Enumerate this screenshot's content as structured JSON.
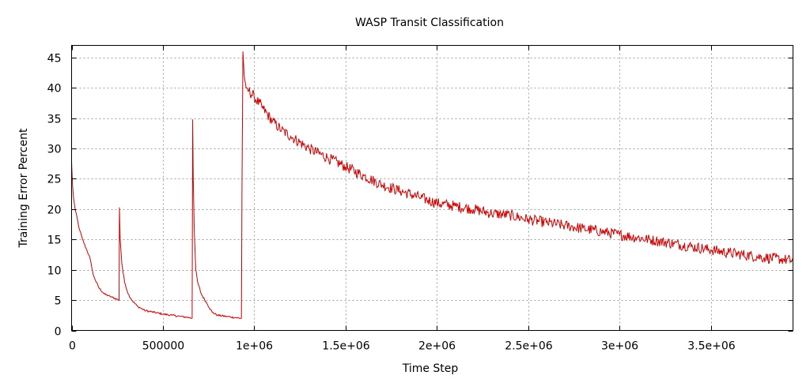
{
  "chart_data": {
    "type": "line",
    "title": "WASP Transit Classification",
    "xlabel": "Time Step",
    "ylabel": "Training Error Percent",
    "xlim": [
      0,
      3950000
    ],
    "ylim": [
      0,
      47
    ],
    "grid": true,
    "xticks": [
      {
        "value": 0,
        "label": "0"
      },
      {
        "value": 500000,
        "label": "500000"
      },
      {
        "value": 1000000,
        "label": "1e+06"
      },
      {
        "value": 1500000,
        "label": "1.5e+06"
      },
      {
        "value": 2000000,
        "label": "2e+06"
      },
      {
        "value": 2500000,
        "label": "2.5e+06"
      },
      {
        "value": 3000000,
        "label": "3e+06"
      },
      {
        "value": 3500000,
        "label": "3.5e+06"
      }
    ],
    "yticks": [
      {
        "value": 0,
        "label": "0"
      },
      {
        "value": 5,
        "label": "5"
      },
      {
        "value": 10,
        "label": "10"
      },
      {
        "value": 15,
        "label": "15"
      },
      {
        "value": 20,
        "label": "20"
      },
      {
        "value": 25,
        "label": "25"
      },
      {
        "value": 30,
        "label": "30"
      },
      {
        "value": 35,
        "label": "35"
      },
      {
        "value": 40,
        "label": "40"
      },
      {
        "value": 45,
        "label": "45"
      }
    ],
    "series": [
      {
        "color": "#cc0000",
        "x": [
          0,
          5000,
          10000,
          20000,
          40000,
          60000,
          80000,
          100000,
          120000,
          150000,
          180000,
          220000,
          260000,
          262000,
          266000,
          275000,
          290000,
          310000,
          330000,
          360000,
          400000,
          450000,
          500000,
          550000,
          600000,
          650000,
          660000,
          663000,
          666000,
          672000,
          680000,
          690000,
          710000,
          740000,
          770000,
          800000,
          850000,
          900000,
          930000,
          933000,
          938000,
          945000,
          955000,
          970000,
          1000000,
          1050000,
          1100000,
          1150000,
          1200000,
          1300000,
          1400000,
          1500000,
          1600000,
          1700000,
          1800000,
          1900000,
          2000000,
          2100000,
          2200000,
          2300000,
          2400000,
          2500000,
          2600000,
          2700000,
          2800000,
          2900000,
          3000000,
          3100000,
          3200000,
          3300000,
          3400000,
          3500000,
          3600000,
          3700000,
          3800000,
          3900000,
          3950000
        ],
        "y": [
          27.8,
          24,
          22,
          20,
          17,
          15,
          13.5,
          12,
          9,
          7,
          6,
          5.5,
          5,
          20.3,
          15,
          11,
          8,
          6,
          5,
          4,
          3.3,
          3,
          2.7,
          2.5,
          2.3,
          2.1,
          2.0,
          34.8,
          25,
          16,
          10,
          8,
          6,
          4.5,
          3,
          2.5,
          2.3,
          2.1,
          2.0,
          23,
          46,
          42,
          40,
          39.5,
          38.5,
          36.5,
          34.5,
          33,
          32,
          30,
          28.5,
          27,
          25.5,
          24,
          23,
          22,
          21,
          20.5,
          20,
          19.3,
          19,
          18.3,
          17.8,
          17.3,
          16.8,
          16.3,
          15.8,
          15.3,
          14.8,
          14.3,
          13.8,
          13.3,
          12.8,
          12.4,
          12,
          11.7,
          11.5
        ]
      }
    ]
  }
}
